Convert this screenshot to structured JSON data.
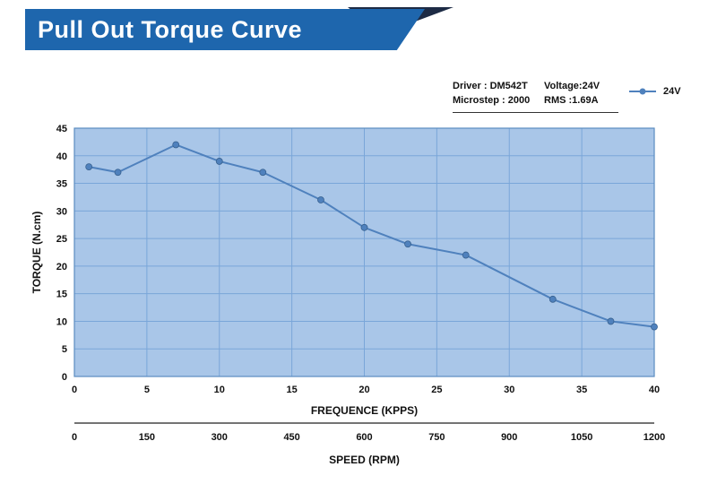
{
  "header": {
    "title": "Pull Out Torque Curve"
  },
  "info": {
    "line1_left": "Driver : DM542T",
    "line1_right": "Voltage:24V",
    "line2_left": "Microstep : 2000",
    "line2_right": "RMS :1.69A"
  },
  "legend": {
    "label": "24V"
  },
  "colors": {
    "banner_blue": "#1e66ad",
    "banner_dark": "#1d2b45",
    "plot_bg": "#a9c6e8",
    "grid": "#7aa6d9",
    "plot_border": "#5b8cc0",
    "series": "#4f81bd",
    "marker_edge": "#38618f",
    "speed_axis": "#222222"
  },
  "chart_data": {
    "type": "line",
    "title": "Pull Out Torque Curve",
    "series": [
      {
        "name": "24V",
        "points": [
          [
            1,
            38
          ],
          [
            3,
            37
          ],
          [
            7,
            42
          ],
          [
            10,
            39
          ],
          [
            13,
            37
          ],
          [
            17,
            32
          ],
          [
            20,
            27
          ],
          [
            23,
            24
          ],
          [
            27,
            22
          ],
          [
            33,
            14
          ],
          [
            37,
            10
          ],
          [
            40,
            9
          ]
        ]
      }
    ],
    "xlabel": "FREQUENCE (KPPS)",
    "ylabel": "TORQUE (N.cm)",
    "xlim": [
      0,
      40
    ],
    "ylim": [
      0,
      45
    ],
    "xticks": [
      0,
      5,
      10,
      15,
      20,
      25,
      30,
      35,
      40
    ],
    "yticks": [
      0,
      5,
      10,
      15,
      20,
      25,
      30,
      35,
      40,
      45
    ],
    "grid": true,
    "legend_position": "top-right",
    "secondary_xaxis": {
      "label": "SPEED (RPM)",
      "ticks": [
        0,
        150,
        300,
        450,
        600,
        750,
        900,
        1050,
        1200
      ]
    }
  }
}
